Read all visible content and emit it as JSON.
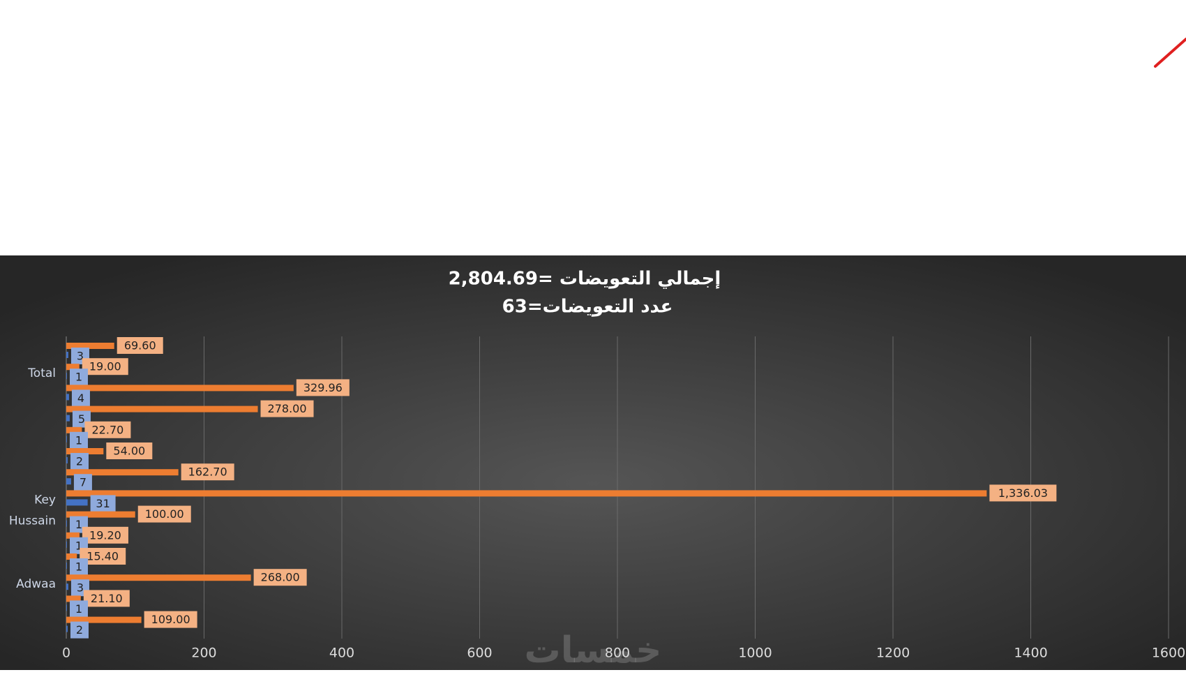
{
  "chart_data": {
    "type": "bar",
    "title": "إجمالي التعويضات =2,804.69",
    "subtitle": "عدد التعويضات=63",
    "watermark": "خمسات",
    "orientation": "horizontal",
    "categories": [
      null,
      "Total",
      null,
      null,
      null,
      null,
      null,
      "Key",
      "Hussain",
      null,
      null,
      "Adwaa",
      null,
      null
    ],
    "series": [
      {
        "color": "#ed7d31",
        "label_color": "#f4b183",
        "values": [
          69.6,
          19,
          329.96,
          278,
          22.7,
          54,
          162.7,
          1336.03,
          100,
          19.2,
          15.4,
          268,
          21.1,
          109
        ],
        "value_labels": [
          "69.60",
          "19.00",
          "329.96",
          "278.00",
          "22.70",
          "54.00",
          "162.70",
          "1,336.03",
          "100.00",
          "19.20",
          "15.40",
          "268.00",
          "21.10",
          "109.00"
        ]
      },
      {
        "color": "#4472c4",
        "label_color": "#8faadc",
        "values": [
          3,
          1,
          4,
          5,
          1,
          2,
          7,
          31,
          1,
          1,
          1,
          3,
          1,
          2
        ]
      }
    ],
    "xlim": [
      0,
      1600
    ],
    "xticks": [
      0,
      200,
      400,
      600,
      800,
      1000,
      1200,
      1400,
      1600
    ],
    "grid": true
  }
}
